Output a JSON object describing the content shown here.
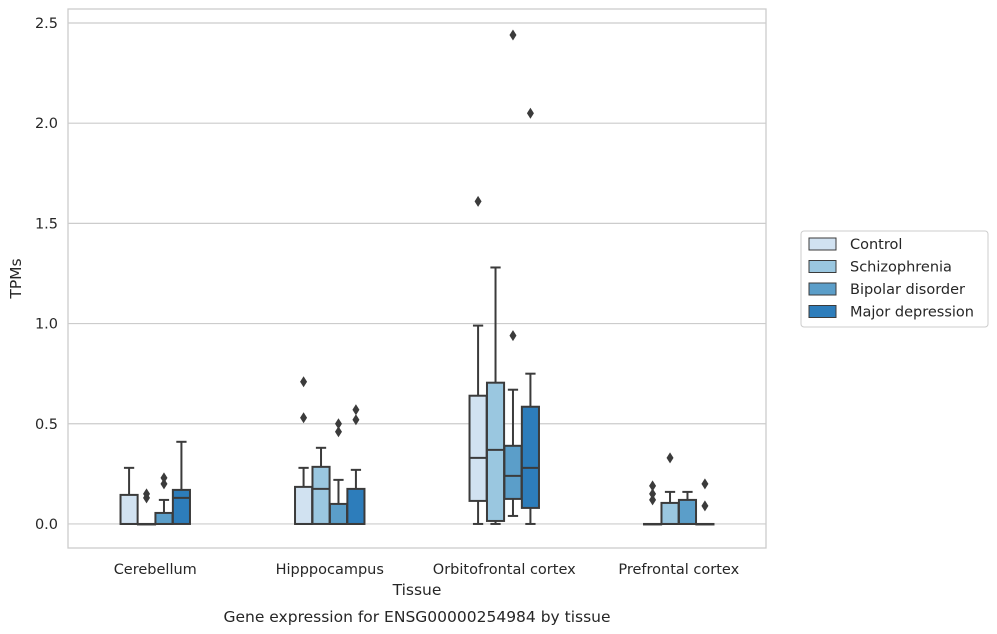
{
  "caption": "Gene expression for ENSG00000254984 by tissue",
  "chart_data": {
    "type": "box",
    "xlabel": "Tissue",
    "ylabel": "TPMs",
    "ylim": [
      -0.12,
      2.57
    ],
    "yticks": [
      0.0,
      0.5,
      1.0,
      1.5,
      2.0,
      2.5
    ],
    "ytick_labels": [
      "0.0",
      "0.5",
      "1.0",
      "1.5",
      "2.0",
      "2.5"
    ],
    "grid": "horizontal",
    "legend_position": "right",
    "categories": [
      "Cerebellum",
      "Hipppocampus",
      "Orbitofrontal cortex",
      "Prefrontal cortex"
    ],
    "series": [
      {
        "name": "Control",
        "color": "#d1e2f1",
        "boxes": [
          {
            "whislo": 0.0,
            "q1": 0.0,
            "med": 0.0,
            "q3": 0.145,
            "whishi": 0.28,
            "fliers": []
          },
          {
            "whislo": 0.0,
            "q1": 0.0,
            "med": 0.0,
            "q3": 0.185,
            "whishi": 0.28,
            "fliers": [
              0.53,
              0.71
            ]
          },
          {
            "whislo": 0.0,
            "q1": 0.115,
            "med": 0.33,
            "q3": 0.64,
            "whishi": 0.99,
            "fliers": [
              1.61
            ]
          },
          {
            "whislo": 0.0,
            "q1": 0.0,
            "med": 0.0,
            "q3": 0.0,
            "whishi": 0.0,
            "fliers": [
              0.12,
              0.15,
              0.19
            ]
          }
        ]
      },
      {
        "name": "Schizophrenia",
        "color": "#9ac7e0",
        "boxes": [
          {
            "whislo": 0.0,
            "q1": 0.0,
            "med": 0.0,
            "q3": 0.0,
            "whishi": 0.0,
            "fliers": [
              0.13,
              0.15
            ]
          },
          {
            "whislo": 0.0,
            "q1": 0.0,
            "med": 0.175,
            "q3": 0.285,
            "whishi": 0.38,
            "fliers": []
          },
          {
            "whislo": 0.0,
            "q1": 0.015,
            "med": 0.37,
            "q3": 0.705,
            "whishi": 1.28,
            "fliers": []
          },
          {
            "whislo": 0.0,
            "q1": 0.0,
            "med": 0.0,
            "q3": 0.105,
            "whishi": 0.16,
            "fliers": [
              0.33
            ]
          }
        ]
      },
      {
        "name": "Bipolar disorder",
        "color": "#5b9ec9",
        "boxes": [
          {
            "whislo": 0.0,
            "q1": 0.0,
            "med": 0.0,
            "q3": 0.055,
            "whishi": 0.12,
            "fliers": [
              0.2,
              0.23
            ]
          },
          {
            "whislo": 0.0,
            "q1": 0.0,
            "med": 0.0,
            "q3": 0.1,
            "whishi": 0.22,
            "fliers": [
              0.46,
              0.5
            ]
          },
          {
            "whislo": 0.04,
            "q1": 0.125,
            "med": 0.24,
            "q3": 0.39,
            "whishi": 0.67,
            "fliers": [
              0.94,
              2.44
            ]
          },
          {
            "whislo": 0.0,
            "q1": 0.0,
            "med": 0.0,
            "q3": 0.12,
            "whishi": 0.16,
            "fliers": []
          }
        ]
      },
      {
        "name": "Major depression",
        "color": "#2d7dbb",
        "boxes": [
          {
            "whislo": 0.0,
            "q1": 0.0,
            "med": 0.13,
            "q3": 0.17,
            "whishi": 0.41,
            "fliers": []
          },
          {
            "whislo": 0.0,
            "q1": 0.0,
            "med": 0.0,
            "q3": 0.175,
            "whishi": 0.27,
            "fliers": [
              0.52,
              0.57
            ]
          },
          {
            "whislo": 0.0,
            "q1": 0.08,
            "med": 0.28,
            "q3": 0.585,
            "whishi": 0.75,
            "fliers": [
              2.05
            ]
          },
          {
            "whislo": 0.0,
            "q1": 0.0,
            "med": 0.0,
            "q3": 0.0,
            "whishi": 0.0,
            "fliers": [
              0.09,
              0.2
            ]
          }
        ]
      }
    ]
  }
}
